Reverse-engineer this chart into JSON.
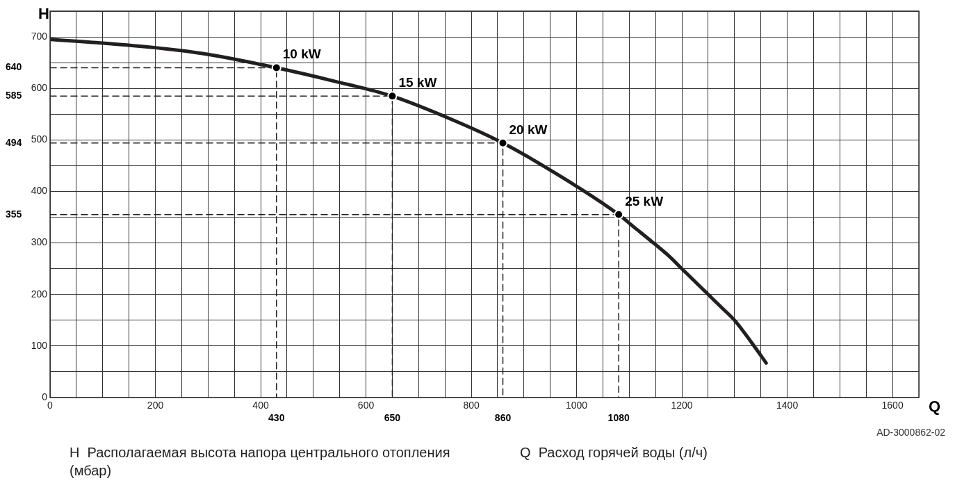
{
  "chart_data": {
    "type": "line",
    "xlabel": "Q",
    "ylabel": "H",
    "xlim": [
      0,
      1650
    ],
    "xticks": [
      0,
      {
        "value": 50,
        "label": null
      },
      {
        "value": 100,
        "label": null
      },
      {
        "value": 150,
        "label": null
      },
      200,
      {
        "value": 250,
        "label": null
      },
      {
        "value": 300,
        "label": null
      },
      {
        "value": 350,
        "label": null
      },
      400,
      {
        "value": 450,
        "label": null
      },
      {
        "value": 500,
        "label": null
      },
      {
        "value": 550,
        "label": null
      },
      600,
      {
        "value": 650,
        "label": null
      },
      {
        "value": 700,
        "label": null
      },
      {
        "value": 750,
        "label": null
      },
      800,
      {
        "value": 850,
        "label": null
      },
      {
        "value": 900,
        "label": null
      },
      {
        "value": 950,
        "label": null
      },
      1000,
      {
        "value": 1050,
        "label": null
      },
      {
        "value": 1100,
        "label": null
      },
      {
        "value": 1150,
        "label": null
      },
      1200,
      {
        "value": 1250,
        "label": null
      },
      {
        "value": 1300,
        "label": null
      },
      {
        "value": 1350,
        "label": null
      },
      1400,
      {
        "value": 1450,
        "label": null
      },
      {
        "value": 1500,
        "label": null
      },
      {
        "value": 1550,
        "label": null
      },
      1600,
      {
        "value": 1650,
        "label": null
      }
    ],
    "ylim": [
      0,
      750
    ],
    "yticks": [
      0,
      {
        "value": 50,
        "label": null
      },
      100,
      {
        "value": 150,
        "label": null
      },
      200,
      {
        "value": 250,
        "label": null
      },
      300,
      {
        "value": 350,
        "label": null
      },
      400,
      {
        "value": 450,
        "label": null
      },
      500,
      {
        "value": 550,
        "label": null
      },
      600,
      {
        "value": 650,
        "label": null
      },
      700,
      {
        "value": 750,
        "label": null
      }
    ],
    "x2lim": [
      0,
      1650
    ],
    "x2ticks": [
      430,
      650,
      860,
      1080
    ],
    "y2lim": [
      0,
      750
    ],
    "y2ticks": [
      355,
      494,
      585,
      640
    ],
    "grid": true,
    "series": [
      {
        "type": "line",
        "color": "#231f20",
        "marker": "none",
        "line_style": "solid",
        "x": [
          0,
          100,
          200,
          300,
          430,
          540,
          650,
          760,
          860,
          1000,
          1080,
          1110,
          1146,
          1175,
          1200,
          1225,
          1250,
          1275,
          1300,
          1330,
          1360
        ],
        "values": [
          695,
          688,
          679,
          666,
          640,
          614,
          585,
          541,
          494,
          410,
          355,
          330,
          300,
          275,
          250,
          225,
          200,
          175,
          150,
          110,
          67
        ]
      },
      {
        "type": "line",
        "color": "#231f20",
        "marker": "none",
        "line_style": "dashed",
        "x": [
          0,
          430,
          430
        ],
        "values": [
          640,
          640,
          0
        ]
      },
      {
        "type": "line",
        "color": "#231f20",
        "marker": "none",
        "line_style": "dashed",
        "x": [
          0,
          650,
          650
        ],
        "values": [
          585,
          585,
          0
        ]
      },
      {
        "type": "line",
        "color": "#231f20",
        "marker": "none",
        "line_style": "dashed",
        "x": [
          0,
          860,
          860
        ],
        "values": [
          494,
          494,
          0
        ]
      },
      {
        "type": "line",
        "color": "#231f20",
        "marker": "none",
        "line_style": "dashed",
        "x": [
          0,
          1080,
          1080
        ],
        "values": [
          355,
          355,
          0
        ]
      },
      {
        "type": "scatter",
        "color": "#000000",
        "marker": "circle",
        "x": [
          430,
          650,
          860,
          1080
        ],
        "values": [
          640,
          585,
          494,
          355
        ]
      }
    ],
    "annotations": [
      {
        "text": "10 kW",
        "x": 430,
        "y": 640
      },
      {
        "text": "15 kW",
        "x": 650,
        "y": 585
      },
      {
        "text": "20 kW",
        "x": 860,
        "y": 494
      },
      {
        "text": "25 kW",
        "x": 1080,
        "y": 355
      },
      "AD-3000862-02",
      "H  Располагаемая высота напора центрального отопления (мбар)",
      "Q  Расход горячей воды (л/ч)"
    ]
  }
}
